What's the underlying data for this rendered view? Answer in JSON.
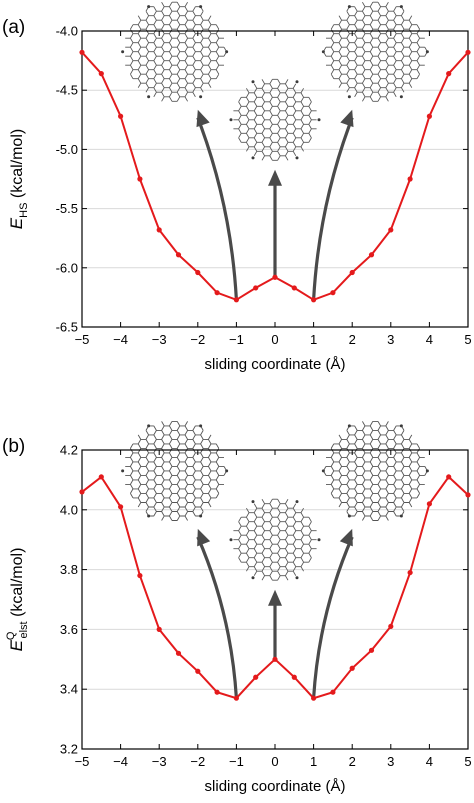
{
  "chart_data": [
    {
      "type": "line",
      "panel_label": "(a)",
      "xlabel": "sliding coordinate (Å)",
      "ylabel_main": "E",
      "ylabel_sub": "HS",
      "ylabel_sup": "",
      "ylabel_unit": " (kcal/mol)",
      "xlim": [
        -5,
        5
      ],
      "ylim": [
        -6.5,
        -4.0
      ],
      "xticks": [
        -5,
        -4,
        -3,
        -2,
        -1,
        0,
        1,
        2,
        3,
        4,
        5
      ],
      "xtick_labels": [
        "−5",
        "−4",
        "−3",
        "−2",
        "−1",
        "0",
        "1",
        "2",
        "3",
        "4",
        "5"
      ],
      "yticks": [
        -6.5,
        -6.0,
        -5.5,
        -5.0,
        -4.5,
        -4.0
      ],
      "ytick_labels": [
        "-6.5",
        "-6.0",
        "-5.5",
        "-5.0",
        "-4.5",
        "-4.0"
      ],
      "grid": true,
      "x": [
        -5,
        -4.5,
        -4,
        -3.5,
        -3,
        -2.5,
        -2,
        -1.5,
        -1,
        -0.5,
        0,
        0.5,
        1,
        1.5,
        2,
        2.5,
        3,
        3.5,
        4,
        4.5,
        5
      ],
      "series": [
        {
          "values": [
            -4.18,
            -4.36,
            -4.72,
            -5.25,
            -5.68,
            -5.89,
            -6.04,
            -6.21,
            -6.27,
            -6.17,
            -6.08,
            -6.17,
            -6.27,
            -6.21,
            -6.04,
            -5.89,
            -5.68,
            -5.25,
            -4.72,
            -4.36,
            -4.18
          ],
          "color": "#e41a1c"
        }
      ]
    },
    {
      "type": "line",
      "panel_label": "(b)",
      "xlabel": "sliding coordinate (Å)",
      "ylabel_main": "E",
      "ylabel_sub": "elst",
      "ylabel_sup": "Q",
      "ylabel_unit": " (kcal/mol)",
      "xlim": [
        -5,
        5
      ],
      "ylim": [
        3.2,
        4.2
      ],
      "xticks": [
        -5,
        -4,
        -3,
        -2,
        -1,
        0,
        1,
        2,
        3,
        4,
        5
      ],
      "xtick_labels": [
        "−5",
        "−4",
        "−3",
        "−2",
        "−1",
        "0",
        "1",
        "2",
        "3",
        "4",
        "5"
      ],
      "yticks": [
        3.2,
        3.4,
        3.6,
        3.8,
        4.0,
        4.2
      ],
      "ytick_labels": [
        "3.2",
        "3.4",
        "3.6",
        "3.8",
        "4.0",
        "4.2"
      ],
      "grid": true,
      "x": [
        -5,
        -4.5,
        -4,
        -3.5,
        -3,
        -2.5,
        -2,
        -1.5,
        -1,
        -0.5,
        0,
        0.5,
        1,
        1.5,
        2,
        2.5,
        3,
        3.5,
        4,
        4.5,
        5
      ],
      "series": [
        {
          "values": [
            4.06,
            4.11,
            4.01,
            3.78,
            3.6,
            3.52,
            3.46,
            3.39,
            3.37,
            3.44,
            3.5,
            3.44,
            3.37,
            3.39,
            3.47,
            3.53,
            3.61,
            3.79,
            4.02,
            4.11,
            4.05
          ],
          "color": "#e41a1c"
        }
      ]
    }
  ]
}
